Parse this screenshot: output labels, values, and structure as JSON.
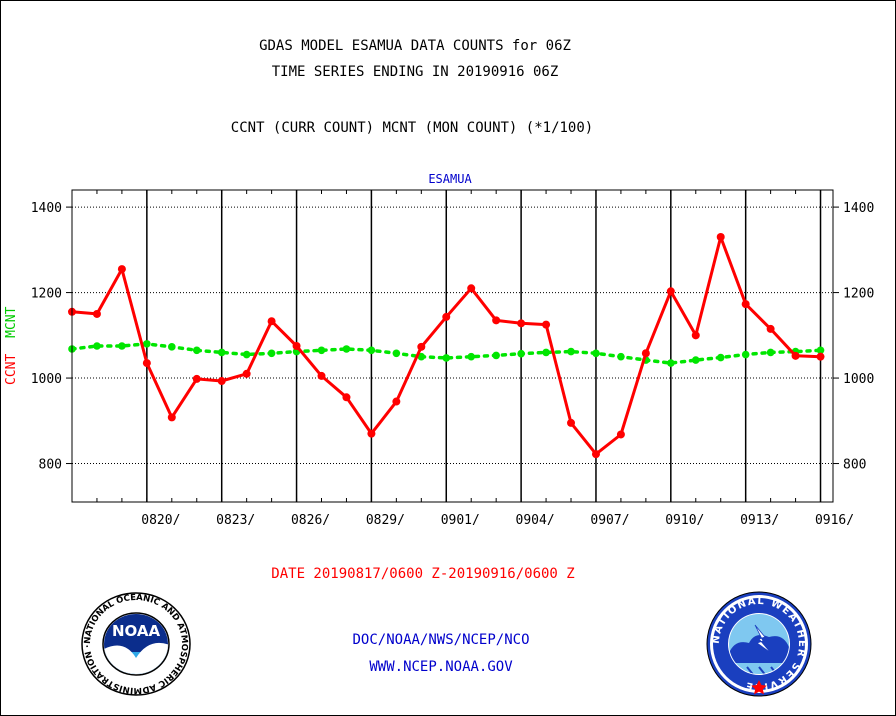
{
  "titles": {
    "line1": "GDAS MODEL ESAMUA DATA COUNTS for 06Z",
    "line2": "TIME SERIES ENDING IN 20190916 06Z",
    "line3": "CCNT (CURR COUNT) MCNT (MON COUNT) (*1/100)",
    "panel_label": "ESAMUA"
  },
  "ylabel": {
    "ccnt": "CCNT",
    "mcnt": "MCNT"
  },
  "footer": {
    "date_range": "DATE 20190817/0600 Z-20190916/0600 Z",
    "agency": "DOC/NOAA/NWS/NCEP/NCO",
    "website": "WWW.NCEP.NOAA.GOV"
  },
  "logos": {
    "noaa": {
      "text": "NOAA",
      "ring": "NATIONAL OCEANIC AND ATMOSPHERIC ADMINISTRATION · U.S. DEPARTMENT OF COMMERCE"
    },
    "nws": {
      "ring": "NATIONAL WEATHER SERVICE"
    }
  },
  "colors": {
    "ccnt": "#ff0000",
    "mcnt": "#00e600",
    "text": "#000000",
    "blue": "#0000cc"
  },
  "chart_data": {
    "type": "line",
    "x_unit": "day",
    "x_start": "0817",
    "x_end": "0916",
    "xlim": [
      17,
      47.5
    ],
    "ylim": [
      710,
      1440
    ],
    "xticks": [
      {
        "x": 20,
        "label": "0820/"
      },
      {
        "x": 23,
        "label": "0823/"
      },
      {
        "x": 26,
        "label": "0826/"
      },
      {
        "x": 29,
        "label": "0829/"
      },
      {
        "x": 32,
        "label": "0901/"
      },
      {
        "x": 35,
        "label": "0904/"
      },
      {
        "x": 38,
        "label": "0907/"
      },
      {
        "x": 41,
        "label": "0910/"
      },
      {
        "x": 44,
        "label": "0913/"
      },
      {
        "x": 47,
        "label": "0916/"
      }
    ],
    "yticks": [
      800,
      1000,
      1200,
      1400
    ],
    "grid": true,
    "series": [
      {
        "name": "CCNT",
        "style": "solid",
        "x": [
          17,
          18,
          19,
          20,
          21,
          22,
          23,
          24,
          25,
          26,
          27,
          28,
          29,
          30,
          31,
          32,
          33,
          34,
          35,
          36,
          37,
          38,
          39,
          40,
          41,
          42,
          43,
          44,
          45,
          46,
          47
        ],
        "values": [
          1155,
          1150,
          1255,
          1035,
          908,
          998,
          993,
          1010,
          1133,
          1075,
          1005,
          955,
          870,
          945,
          1073,
          1143,
          1210,
          1135,
          1128,
          1125,
          895,
          822,
          868,
          1058,
          1203,
          1100,
          1330,
          1173,
          1115,
          1052,
          1050
        ]
      },
      {
        "name": "MCNT",
        "style": "dotted",
        "x": [
          17,
          18,
          19,
          20,
          21,
          22,
          23,
          24,
          25,
          26,
          27,
          28,
          29,
          30,
          31,
          32,
          33,
          34,
          35,
          36,
          37,
          38,
          39,
          40,
          41,
          42,
          43,
          44,
          45,
          46,
          47
        ],
        "values": [
          1068,
          1075,
          1075,
          1080,
          1073,
          1065,
          1060,
          1055,
          1058,
          1062,
          1065,
          1068,
          1065,
          1058,
          1050,
          1047,
          1050,
          1053,
          1057,
          1060,
          1062,
          1058,
          1050,
          1042,
          1035,
          1042,
          1048,
          1055,
          1060,
          1062,
          1065
        ]
      }
    ]
  }
}
